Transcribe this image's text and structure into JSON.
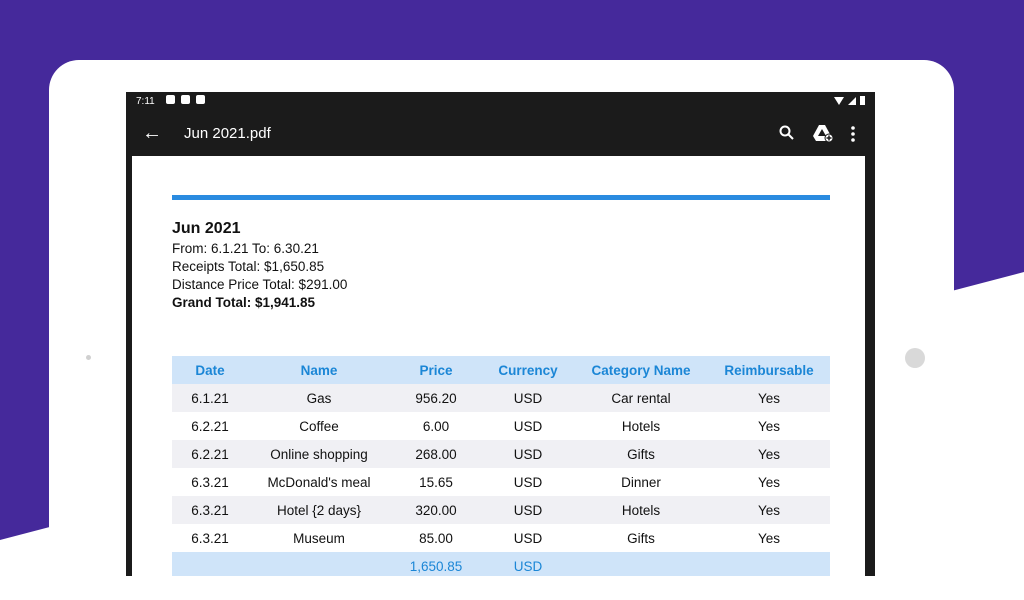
{
  "status_bar": {
    "time": "7:11"
  },
  "app_bar": {
    "title": "Jun 2021.pdf"
  },
  "report": {
    "title": "Jun 2021",
    "from_to": "From: 6.1.21 To: 6.30.21",
    "receipts_total": "Receipts Total: $1,650.85",
    "distance_total": "Distance Price Total: $291.00",
    "grand_total": "Grand Total: $1,941.85"
  },
  "table": {
    "headers": [
      "Date",
      "Name",
      "Price",
      "Currency",
      "Category Name",
      "Reimbursable"
    ],
    "rows": [
      [
        "6.1.21",
        "Gas",
        "956.20",
        "USD",
        "Car rental",
        "Yes"
      ],
      [
        "6.2.21",
        "Coffee",
        "6.00",
        "USD",
        "Hotels",
        "Yes"
      ],
      [
        "6.2.21",
        "Online shopping",
        "268.00",
        "USD",
        "Gifts",
        "Yes"
      ],
      [
        "6.3.21",
        "McDonald's meal",
        "15.65",
        "USD",
        "Dinner",
        "Yes"
      ],
      [
        "6.3.21",
        "Hotel {2 days}",
        "320.00",
        "USD",
        "Hotels",
        "Yes"
      ],
      [
        "6.3.21",
        "Museum",
        "85.00",
        "USD",
        "Gifts",
        "Yes"
      ]
    ],
    "total_row": [
      "",
      "",
      "1,650.85",
      "USD",
      "",
      ""
    ]
  },
  "colors": {
    "background_purple": "#45299b",
    "accent_blue": "#2a8be0",
    "header_fill": "#cfe4f9",
    "header_text": "#1b86d6"
  },
  "icons": [
    "arrow-back-icon",
    "search-icon",
    "google-drive-icon",
    "more-vert-icon",
    "settings-icon",
    "wifi-icon",
    "signal-icon",
    "battery-icon"
  ]
}
